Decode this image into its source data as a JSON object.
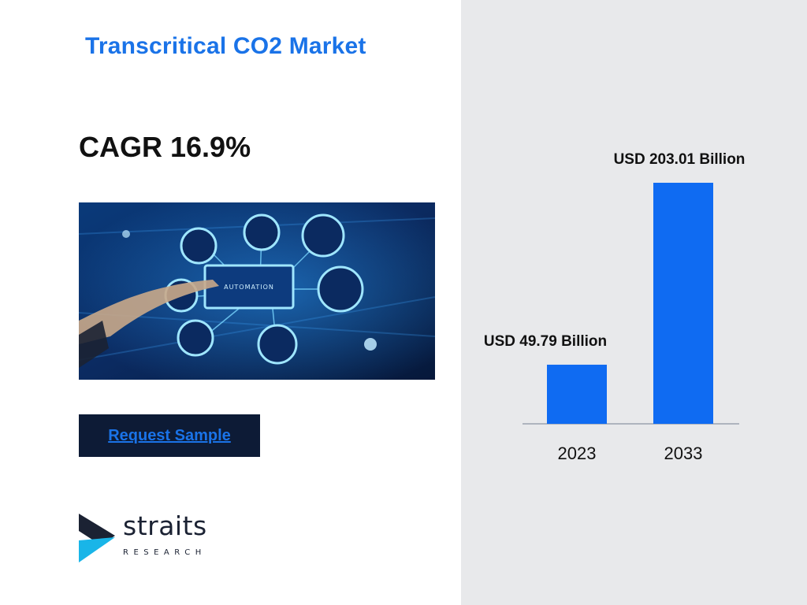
{
  "title": "Transcritical CO2 Market",
  "cagr": "CAGR 16.9%",
  "cta": {
    "label": "Request Sample"
  },
  "hero": {
    "label": "AUTOMATION"
  },
  "logo": {
    "name": "straits",
    "sub": "RESEARCH"
  },
  "colors": {
    "accent": "#1a73e8",
    "bar": "#0f6bf2",
    "panel": "#e8e9eb",
    "cta_bg": "#0d1b36"
  },
  "chart_data": {
    "type": "bar",
    "categories": [
      "2023",
      "2033"
    ],
    "values": [
      49.79,
      203.01
    ],
    "data_labels": [
      "USD 49.79  Billion",
      "USD 203.01 Billion"
    ]
  }
}
